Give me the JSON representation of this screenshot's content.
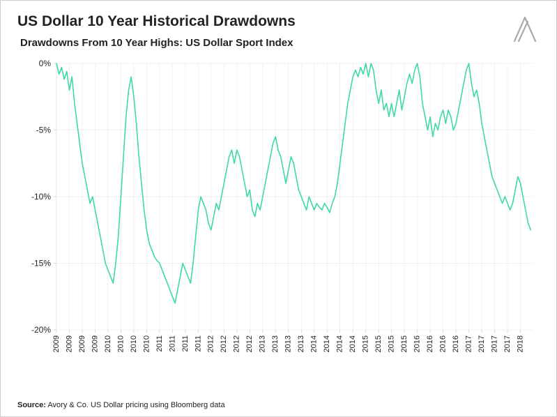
{
  "title": "US Dollar 10 Year Historical Drawdowns",
  "subtitle": "Drawdowns From 10 Year Highs: US Dollar Sport Index",
  "source_label": "Source:",
  "source_text": " Avory & Co. US Dollar pricing using Bloomberg data",
  "logo_stroke": "#aaaaaa",
  "chart": {
    "type": "line",
    "background_color": "#ffffff",
    "line_color": "#3fd9a4",
    "line_width": 1.6,
    "grid_color": "#e4e4e4",
    "grid_width": 0.5,
    "axis_border_color": "#cccccc",
    "tick_font_size": 12,
    "xtick_font_size": 11,
    "xtick_rotation": -90,
    "ylim": [
      -20,
      0
    ],
    "ytick_step": 5,
    "yticks": [
      0,
      -5,
      -10,
      -15,
      -20
    ],
    "ytick_labels": [
      "0%",
      "-5%",
      "-10%",
      "-15%",
      "-20%"
    ],
    "x_start_year": 2009,
    "x_end_year": 2018.25,
    "xticks_years": [
      2009,
      2009,
      2009,
      2009,
      2010,
      2010,
      2010,
      2010,
      2011,
      2011,
      2011,
      2011,
      2012,
      2012,
      2012,
      2012,
      2013,
      2013,
      2013,
      2013,
      2014,
      2014,
      2014,
      2014,
      2015,
      2015,
      2015,
      2015,
      2016,
      2016,
      2016,
      2016,
      2017,
      2017,
      2017,
      2017,
      2018
    ],
    "series": {
      "x": [
        2009.0,
        2009.05,
        2009.1,
        2009.15,
        2009.2,
        2009.25,
        2009.3,
        2009.35,
        2009.4,
        2009.45,
        2009.5,
        2009.55,
        2009.6,
        2009.65,
        2009.7,
        2009.75,
        2009.8,
        2009.85,
        2009.9,
        2009.95,
        2010.0,
        2010.05,
        2010.1,
        2010.15,
        2010.2,
        2010.25,
        2010.3,
        2010.35,
        2010.4,
        2010.45,
        2010.5,
        2010.55,
        2010.6,
        2010.65,
        2010.7,
        2010.75,
        2010.8,
        2010.85,
        2010.9,
        2010.95,
        2011.0,
        2011.05,
        2011.1,
        2011.15,
        2011.2,
        2011.25,
        2011.3,
        2011.35,
        2011.4,
        2011.45,
        2011.5,
        2011.55,
        2011.6,
        2011.65,
        2011.7,
        2011.75,
        2011.8,
        2011.85,
        2011.9,
        2011.95,
        2012.0,
        2012.05,
        2012.1,
        2012.15,
        2012.2,
        2012.25,
        2012.3,
        2012.35,
        2012.4,
        2012.45,
        2012.5,
        2012.55,
        2012.6,
        2012.65,
        2012.7,
        2012.75,
        2012.8,
        2012.85,
        2012.9,
        2012.95,
        2013.0,
        2013.05,
        2013.1,
        2013.15,
        2013.2,
        2013.25,
        2013.3,
        2013.35,
        2013.4,
        2013.45,
        2013.5,
        2013.55,
        2013.6,
        2013.65,
        2013.7,
        2013.75,
        2013.8,
        2013.85,
        2013.9,
        2013.95,
        2014.0,
        2014.05,
        2014.1,
        2014.15,
        2014.2,
        2014.25,
        2014.3,
        2014.35,
        2014.4,
        2014.45,
        2014.5,
        2014.55,
        2014.6,
        2014.65,
        2014.7,
        2014.75,
        2014.8,
        2014.85,
        2014.9,
        2014.95,
        2015.0,
        2015.05,
        2015.1,
        2015.15,
        2015.2,
        2015.25,
        2015.3,
        2015.35,
        2015.4,
        2015.45,
        2015.5,
        2015.55,
        2015.6,
        2015.65,
        2015.7,
        2015.75,
        2015.8,
        2015.85,
        2015.9,
        2015.95,
        2016.0,
        2016.05,
        2016.1,
        2016.15,
        2016.2,
        2016.25,
        2016.3,
        2016.35,
        2016.4,
        2016.45,
        2016.5,
        2016.55,
        2016.6,
        2016.65,
        2016.7,
        2016.75,
        2016.8,
        2016.85,
        2016.9,
        2016.95,
        2017.0,
        2017.05,
        2017.1,
        2017.15,
        2017.2,
        2017.25,
        2017.3,
        2017.35,
        2017.4,
        2017.45,
        2017.5,
        2017.55,
        2017.6,
        2017.65,
        2017.7,
        2017.75,
        2017.8,
        2017.85,
        2017.9,
        2017.95,
        2018.0,
        2018.05,
        2018.1,
        2018.15,
        2018.2
      ],
      "y": [
        0.0,
        -0.8,
        -0.3,
        -1.2,
        -0.6,
        -2.0,
        -1.0,
        -3.0,
        -4.5,
        -6.0,
        -7.5,
        -8.5,
        -9.5,
        -10.5,
        -10.0,
        -11.0,
        -12.0,
        -13.0,
        -14.0,
        -15.0,
        -15.5,
        -16.0,
        -16.5,
        -15.0,
        -13.0,
        -10.0,
        -7.0,
        -4.0,
        -2.0,
        -1.0,
        -2.5,
        -4.5,
        -7.0,
        -9.0,
        -11.0,
        -12.5,
        -13.5,
        -14.0,
        -14.5,
        -14.8,
        -15.0,
        -15.5,
        -16.0,
        -16.5,
        -17.0,
        -17.5,
        -18.0,
        -17.0,
        -16.0,
        -15.0,
        -15.5,
        -16.0,
        -16.5,
        -15.0,
        -13.0,
        -11.0,
        -10.0,
        -10.5,
        -11.0,
        -12.0,
        -12.5,
        -11.5,
        -10.5,
        -11.0,
        -10.0,
        -9.0,
        -8.0,
        -7.0,
        -6.5,
        -7.5,
        -6.5,
        -7.0,
        -8.0,
        -9.0,
        -10.0,
        -9.5,
        -11.0,
        -11.5,
        -10.5,
        -11.0,
        -10.0,
        -9.0,
        -8.0,
        -7.0,
        -6.0,
        -5.5,
        -6.5,
        -7.0,
        -8.0,
        -9.0,
        -8.0,
        -7.0,
        -7.5,
        -8.5,
        -9.5,
        -10.0,
        -10.5,
        -11.0,
        -10.0,
        -10.5,
        -11.0,
        -10.5,
        -10.8,
        -11.0,
        -10.5,
        -10.8,
        -11.2,
        -10.5,
        -10.0,
        -9.0,
        -7.5,
        -6.0,
        -4.5,
        -3.0,
        -2.0,
        -1.0,
        -0.5,
        -1.0,
        -0.3,
        -0.8,
        0.0,
        -1.0,
        0.0,
        -0.5,
        -2.0,
        -3.0,
        -2.0,
        -3.5,
        -3.0,
        -4.0,
        -3.0,
        -4.0,
        -3.0,
        -2.0,
        -3.5,
        -2.5,
        -1.5,
        -0.8,
        -1.5,
        -0.5,
        0.0,
        -1.0,
        -3.0,
        -4.0,
        -5.0,
        -4.0,
        -5.5,
        -4.5,
        -5.0,
        -4.0,
        -3.5,
        -4.5,
        -3.5,
        -4.0,
        -5.0,
        -4.5,
        -3.5,
        -2.5,
        -1.5,
        -0.5,
        0.0,
        -1.5,
        -2.5,
        -2.0,
        -3.0,
        -4.5,
        -5.5,
        -6.5,
        -7.5,
        -8.5,
        -9.0,
        -9.5,
        -10.0,
        -10.5,
        -10.0,
        -10.5,
        -11.0,
        -10.5,
        -9.5,
        -8.5,
        -9.0,
        -10.0,
        -11.0,
        -12.0,
        -12.5
      ]
    }
  }
}
